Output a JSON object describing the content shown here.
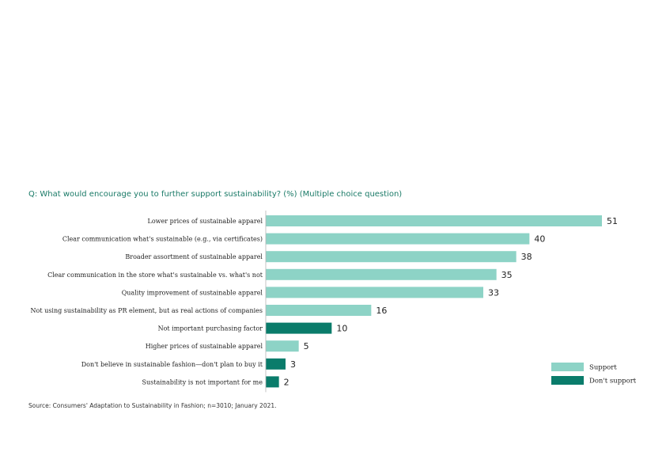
{
  "chart_data": {
    "type": "bar",
    "orientation": "horizontal",
    "title": "Q: What would encourage you to further support sustainability? (%) (Multiple choice question)",
    "categories": [
      "Lower prices of sustainable apparel",
      "Clear communication what's sustainable (e.g., via certificates)",
      "Broader assortment of sustainable apparel",
      "Clear communication in the store what's sustainable vs. what's not",
      "Quality improvement of sustainable apparel",
      "Not using sustainability as PR element, but as real actions of companies",
      "Not important purchasing factor",
      "Higher prices of sustainable apparel",
      "Don't believe in sustainable fashion—don't plan to buy it",
      "Sustainability is not important for me"
    ],
    "values": [
      51,
      40,
      38,
      35,
      33,
      16,
      10,
      5,
      3,
      2
    ],
    "groups": [
      "Support",
      "Support",
      "Support",
      "Support",
      "Support",
      "Support",
      "Don't support",
      "Support",
      "Don't support",
      "Don't support"
    ],
    "legend": [
      {
        "name": "Support",
        "color": "#8dd3c6"
      },
      {
        "name": "Don't support",
        "color": "#0a7c6b"
      }
    ],
    "legend_position": "bottom-right",
    "xlim": [
      0,
      51
    ],
    "grid": false,
    "source": "Source: Consumers' Adaptation to Sustainability in Fashion; n=3010; January 2021."
  }
}
